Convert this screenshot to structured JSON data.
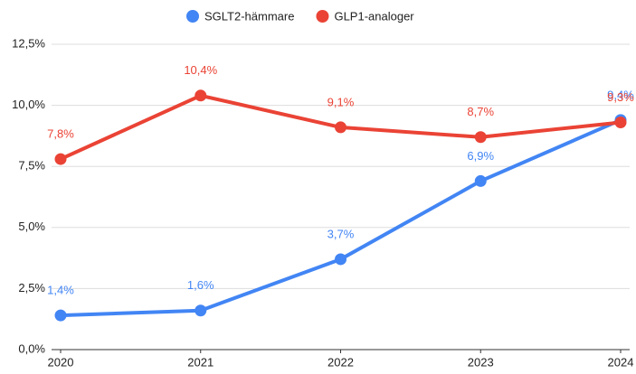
{
  "chart_data": {
    "type": "line",
    "x": [
      2020,
      2021,
      2022,
      2023,
      2024
    ],
    "xlim": [
      2020,
      2024
    ],
    "xticks": [
      2020,
      2021,
      2022,
      2023,
      2024
    ],
    "ylim": [
      0,
      12.5
    ],
    "yticks": [
      {
        "value": 0,
        "label": "0,0%"
      },
      {
        "value": 2.5,
        "label": "2,5%"
      },
      {
        "value": 5,
        "label": "5,0%"
      },
      {
        "value": 7.5,
        "label": "7,5%"
      },
      {
        "value": 10,
        "label": "10,0%"
      },
      {
        "value": 12.5,
        "label": "12,5%"
      }
    ],
    "grid": true,
    "legend": "top",
    "series": [
      {
        "name": "SGLT2-hämmare",
        "color": "#4285f4",
        "values": [
          1.4,
          1.6,
          3.7,
          6.9,
          9.4
        ],
        "value_labels": [
          "1,4%",
          "1,6%",
          "3,7%",
          "6,9%",
          "9,4%"
        ]
      },
      {
        "name": "GLP1-analoger",
        "color": "#ea4335",
        "values": [
          7.8,
          10.4,
          9.1,
          8.7,
          9.3
        ],
        "value_labels": [
          "7,8%",
          "10,4%",
          "9,1%",
          "8,7%",
          "9,3%"
        ]
      }
    ]
  }
}
